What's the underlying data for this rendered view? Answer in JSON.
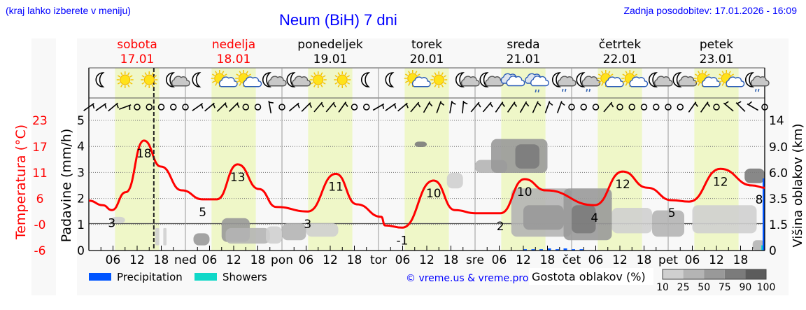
{
  "header": {
    "hint": "(kraj lahko izberete v meniju)",
    "title": "Neum (BiH) 7 dni",
    "updated": "Zadnja posodobitev: 17.01.2026 - 16:09"
  },
  "colors": {
    "weekend": "#ff0000",
    "weekday": "#000000",
    "temperature": "#ff0000",
    "daylight": "#eff7c8",
    "precipitation": "#0055ff",
    "showers": "#10d8c8",
    "link": "#0000ff"
  },
  "days": [
    {
      "name": "sobota",
      "date": "17.01",
      "weekend": true,
      "abbr": ""
    },
    {
      "name": "nedelja",
      "date": "18.01",
      "weekend": true,
      "abbr": "ned"
    },
    {
      "name": "ponedeljek",
      "date": "19.01",
      "weekend": false,
      "abbr": "pon"
    },
    {
      "name": "torek",
      "date": "20.01",
      "weekend": false,
      "abbr": "tor"
    },
    {
      "name": "sreda",
      "date": "21.01",
      "weekend": false,
      "abbr": "sre"
    },
    {
      "name": "četrtek",
      "date": "22.01",
      "weekend": false,
      "abbr": "čet"
    },
    {
      "name": "petek",
      "date": "23.01",
      "weekend": false,
      "abbr": "pet"
    }
  ],
  "hour_ticks": [
    "06",
    "12",
    "18"
  ],
  "icons": [
    "moon",
    "sun",
    "sun",
    "moon-cloud",
    "moon",
    "sun-cloud",
    "sun-cloud",
    "moon-cloud",
    "moon-cloud",
    "sun",
    "sun",
    "moon",
    "moon",
    "sun-cloud",
    "sun",
    "moon-cloud",
    "moon-cloud",
    "cloud",
    "cloud-rain",
    "moon-cloud-rain",
    "moon-cloud-rain",
    "sun-cloud",
    "sun-cloud",
    "moon-cloud",
    "moon-cloud",
    "sun-cloud",
    "sun-cloud",
    "moon-cloud-rain"
  ],
  "wind": [
    55,
    55,
    50,
    70,
    "c",
    "c",
    "c",
    "c",
    "c",
    55,
    50,
    45,
    45,
    "c",
    "c",
    -10,
    "c",
    50,
    45,
    40,
    40,
    35,
    "c",
    "c",
    60,
    55,
    50,
    40,
    30,
    20,
    10,
    5,
    40,
    40,
    35,
    35,
    30,
    25,
    20,
    20,
    "c",
    "c",
    "c",
    40,
    "c",
    "c",
    "c",
    "c",
    "c",
    "c",
    35,
    35,
    "c",
    -50,
    -45,
    -60,
    "c"
  ],
  "chart_data": {
    "type": "line",
    "title": "Neum (BiH) 7 dni",
    "xlabel": "",
    "x_unit": "hours since 17.01 00:00",
    "xlim": [
      0,
      168
    ],
    "left_axis": {
      "label": "Padavine (mm/h)",
      "ticks": [
        "0",
        "1",
        "2",
        "3",
        "4",
        "5"
      ],
      "ylim": [
        0,
        5
      ]
    },
    "temp_axis": {
      "label": "Temperatura (°C)",
      "ticks": [
        "-6",
        "-0",
        "6",
        "11",
        "17",
        "23"
      ],
      "ylim": [
        -6,
        23
      ]
    },
    "right_axis": {
      "label": "Višina oblakov (km)",
      "ticks": [
        "0",
        "1.5",
        "3.5",
        "6.0",
        "9.0",
        "14"
      ],
      "values": [
        0,
        1.5,
        3.5,
        6,
        9,
        14
      ]
    },
    "temperature": {
      "hours": [
        0,
        3.5,
        5.7,
        9.2,
        13.7,
        17.9,
        23.1,
        28.3,
        31.8,
        37,
        42.3,
        46.6,
        54.4,
        61.4,
        66.6,
        72.7,
        73.6,
        77.9,
        85.7,
        91,
        96.2,
        102.3,
        108.3,
        113.6,
        125.7,
        132.7,
        138.8,
        144.9,
        149.2,
        157,
        164.9,
        168
      ],
      "values": [
        5.1,
        4.1,
        3.0,
        7,
        18.5,
        12.7,
        7.4,
        5.4,
        5.4,
        13.2,
        7.7,
        3.7,
        2.7,
        11.1,
        4.3,
        1.5,
        -0.4,
        -0.9,
        9.6,
        3,
        2.3,
        2.3,
        9.9,
        7.4,
        4.1,
        11.6,
        8,
        5.2,
        4.9,
        12.2,
        8.5,
        8
      ]
    },
    "temp_labels": [
      {
        "hour": 5.7,
        "text": "3",
        "pos": "below"
      },
      {
        "hour": 13.7,
        "text": "18",
        "pos": "below"
      },
      {
        "hour": 28.3,
        "text": "5",
        "pos": "below"
      },
      {
        "hour": 37,
        "text": "13",
        "pos": "below"
      },
      {
        "hour": 54.4,
        "text": "3",
        "pos": "below"
      },
      {
        "hour": 61.4,
        "text": "11",
        "pos": "below"
      },
      {
        "hour": 77.9,
        "text": "-1",
        "pos": "below"
      },
      {
        "hour": 85.7,
        "text": "10",
        "pos": "below"
      },
      {
        "hour": 102.3,
        "text": "2",
        "pos": "below"
      },
      {
        "hour": 108.3,
        "text": "10",
        "pos": "below"
      },
      {
        "hour": 125.7,
        "text": "4",
        "pos": "below"
      },
      {
        "hour": 132.7,
        "text": "12",
        "pos": "below"
      },
      {
        "hour": 144.9,
        "text": "5",
        "pos": "below"
      },
      {
        "hour": 157,
        "text": "12",
        "pos": "below"
      },
      {
        "hour": 167,
        "text": "8",
        "pos": "below"
      }
    ],
    "now_hour": 16.15,
    "daylight": [
      [
        6.5,
        17.5
      ]
    ],
    "clouds": [
      {
        "h": [
          5.5,
          9
        ],
        "km": [
          1.6,
          2.1
        ],
        "d": 10
      },
      {
        "h": [
          16.5,
          17.5
        ],
        "km": [
          0.3,
          1.3
        ],
        "d": 10
      },
      {
        "h": [
          18.5,
          19.3
        ],
        "km": [
          0.3,
          1.3
        ],
        "d": 10
      },
      {
        "h": [
          26,
          30
        ],
        "km": [
          0.3,
          1.0
        ],
        "d": 50
      },
      {
        "h": [
          33,
          40
        ],
        "km": [
          0.5,
          2.0
        ],
        "d": 50
      },
      {
        "h": [
          34,
          45
        ],
        "km": [
          0.4,
          1.3
        ],
        "d": 25
      },
      {
        "h": [
          44,
          48
        ],
        "km": [
          0.4,
          1.4
        ],
        "d": 10
      },
      {
        "h": [
          48,
          54
        ],
        "km": [
          0.6,
          1.6
        ],
        "d": 25
      },
      {
        "h": [
          54,
          62
        ],
        "km": [
          0.8,
          1.6
        ],
        "d": 10
      },
      {
        "h": [
          81,
          84
        ],
        "km": [
          9.0,
          10.0
        ],
        "d": 75
      },
      {
        "h": [
          89,
          93
        ],
        "km": [
          4.5,
          6.0
        ],
        "d": 10
      },
      {
        "h": [
          96,
          104
        ],
        "km": [
          6.0,
          7.5
        ],
        "d": 25
      },
      {
        "h": [
          100,
          114
        ],
        "km": [
          6.0,
          10.5
        ],
        "d": 50
      },
      {
        "h": [
          106,
          112
        ],
        "km": [
          6.5,
          9.5
        ],
        "d": 75
      },
      {
        "h": [
          105,
          120
        ],
        "km": [
          0.8,
          4.5
        ],
        "d": 25
      },
      {
        "h": [
          108,
          118
        ],
        "km": [
          1.2,
          3.0
        ],
        "d": 50
      },
      {
        "h": [
          118,
          130
        ],
        "km": [
          0.6,
          4.5
        ],
        "d": 50
      },
      {
        "h": [
          120,
          126
        ],
        "km": [
          1.0,
          3.0
        ],
        "d": 75
      },
      {
        "h": [
          130,
          140
        ],
        "km": [
          1.0,
          2.8
        ],
        "d": 10
      },
      {
        "h": [
          140,
          148
        ],
        "km": [
          0.8,
          2.6
        ],
        "d": 25
      },
      {
        "h": [
          150,
          166
        ],
        "km": [
          1.0,
          3.0
        ],
        "d": 10
      },
      {
        "h": [
          163,
          168
        ],
        "km": [
          5.0,
          6.5
        ],
        "d": 75
      },
      {
        "h": [
          165,
          168
        ],
        "km": [
          0,
          0.6
        ],
        "d": 25
      }
    ],
    "precipitation": {
      "hours": [
        108,
        110,
        112,
        114,
        116,
        118,
        120,
        122
      ],
      "values": [
        0.05,
        0.05,
        0.05,
        0.08,
        0.05,
        0.08,
        0.05,
        0.05
      ]
    },
    "showers": {
      "hours": [
        167.5
      ],
      "values": [
        0.2
      ]
    },
    "legend": [
      {
        "label": "Precipitation",
        "color": "#0055ff"
      },
      {
        "label": "Showers",
        "color": "#10d8c8"
      }
    ],
    "credit": "© vreme.us & vreme.pro",
    "cloud_legend": {
      "title": "Gostota oblakov (%)",
      "ticks": [
        "10",
        "25",
        "50",
        "75",
        "90",
        "100"
      ],
      "colors": [
        "#cfcfcf",
        "#b4b4b4",
        "#999999",
        "#7b7b7b",
        "#5c5c5c"
      ]
    }
  }
}
